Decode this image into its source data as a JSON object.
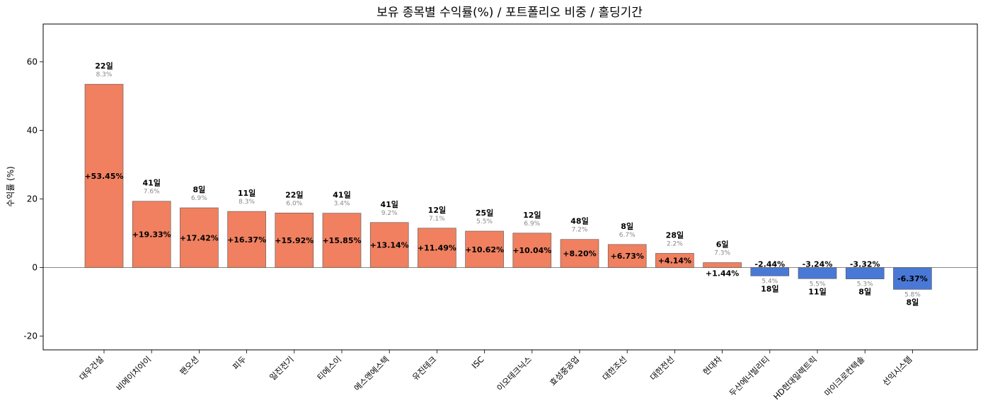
{
  "chart_data": {
    "type": "bar",
    "title": "보유 종목별 수익률(%) / 포트폴리오 비중 / 홀딩기간",
    "xlabel": "",
    "ylabel": "수익률 (%)",
    "ylim": [
      -24,
      71
    ],
    "yticks": [
      -20,
      0,
      20,
      40,
      60
    ],
    "grid": false,
    "zero_line": true,
    "colors": {
      "positive": "#f08060",
      "negative": "#4a78d6",
      "zero_line": "#888888"
    },
    "categories": [
      "대우건설",
      "비에이치아이",
      "팬오션",
      "피두",
      "일진전기",
      "티에스이",
      "에스앤에스텍",
      "유진테크",
      "ISC",
      "이오테크닉스",
      "효성중공업",
      "대한조선",
      "대한전선",
      "현대차",
      "두산에너빌리티",
      "HD현대일렉트릭",
      "마이크로컨텍솔",
      "선익시스템"
    ],
    "values": [
      53.45,
      19.33,
      17.42,
      16.37,
      15.92,
      15.85,
      13.14,
      11.49,
      10.62,
      10.04,
      8.2,
      6.73,
      4.14,
      1.44,
      -2.44,
      -3.24,
      -3.32,
      -6.37
    ],
    "value_labels": [
      "+53.45%",
      "+19.33%",
      "+17.42%",
      "+16.37%",
      "+15.92%",
      "+15.85%",
      "+13.14%",
      "+11.49%",
      "+10.62%",
      "+10.04%",
      "+8.20%",
      "+6.73%",
      "+4.14%",
      "+1.44%",
      "-2.44%",
      "-3.24%",
      "-3.32%",
      "-6.37%"
    ],
    "weights": [
      "8.3%",
      "7.6%",
      "6.9%",
      "8.3%",
      "6.0%",
      "3.4%",
      "9.2%",
      "7.1%",
      "5.5%",
      "6.9%",
      "7.2%",
      "6.7%",
      "2.2%",
      "7.3%",
      "5.4%",
      "5.5%",
      "5.3%",
      "5.8%"
    ],
    "holding_days": [
      "22일",
      "41일",
      "8일",
      "11일",
      "22일",
      "41일",
      "41일",
      "12일",
      "25일",
      "12일",
      "48일",
      "8일",
      "28일",
      "6일",
      "18일",
      "11일",
      "8일",
      "8일"
    ]
  }
}
